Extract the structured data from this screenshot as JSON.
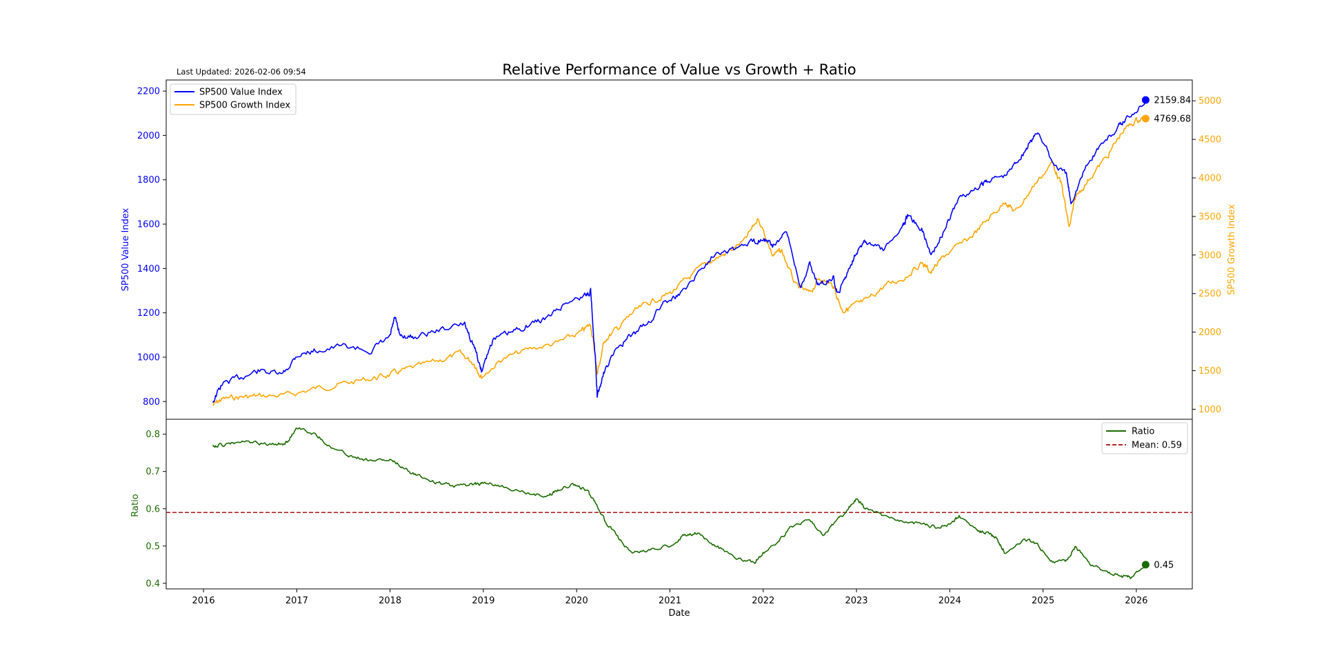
{
  "meta": {
    "last_updated": "Last Updated: 2026-02-06 09:54"
  },
  "colors": {
    "value": "#0000ff",
    "growth": "#ffa500",
    "ratio": "#1a6b00",
    "mean": "#b22222",
    "axis": "#000000"
  },
  "chart_data": [
    {
      "type": "line",
      "title": "Relative Performance of Value vs Growth + Ratio",
      "xlim": [
        2015.6,
        2026.6
      ],
      "x_ticks": [
        2016,
        2017,
        2018,
        2019,
        2020,
        2021,
        2022,
        2023,
        2024,
        2025,
        2026
      ],
      "x_tick_labels": [
        "2016",
        "2017",
        "2018",
        "2019",
        "2020",
        "2021",
        "2022",
        "2023",
        "2024",
        "2025",
        "2026"
      ],
      "ylabel_left": "SP500 Value Index",
      "ylabel_right": "SP500 Growth Index",
      "ylim_left": [
        720,
        2250
      ],
      "ylim_right": [
        870,
        5270
      ],
      "y_ticks_left": [
        "800",
        "1000",
        "1200",
        "1400",
        "1600",
        "1800",
        "2000",
        "2200"
      ],
      "y_ticks_right": [
        "1000",
        "1500",
        "2000",
        "2500",
        "3000",
        "3500",
        "4000",
        "4500",
        "5000"
      ],
      "legend": {
        "position": "top-left",
        "entries": [
          "SP500 Value Index",
          "SP500 Growth Index"
        ]
      },
      "series": [
        {
          "name": "SP500 Value Index",
          "axis": "left",
          "x": [
            2016.1,
            2016.2,
            2016.4,
            2016.6,
            2016.85,
            2017.0,
            2017.2,
            2017.5,
            2017.8,
            2018.0,
            2018.05,
            2018.1,
            2018.25,
            2018.5,
            2018.8,
            2018.9,
            2018.98,
            2019.1,
            2019.3,
            2019.5,
            2019.7,
            2019.9,
            2020.1,
            2020.15,
            2020.2,
            2020.22,
            2020.3,
            2020.45,
            2020.6,
            2020.8,
            2020.95,
            2021.1,
            2021.3,
            2021.5,
            2021.7,
            2021.9,
            2022.0,
            2022.1,
            2022.25,
            2022.4,
            2022.5,
            2022.6,
            2022.75,
            2022.8,
            2022.9,
            2023.0,
            2023.1,
            2023.3,
            2023.5,
            2023.55,
            2023.7,
            2023.8,
            2023.95,
            2024.1,
            2024.3,
            2024.4,
            2024.6,
            2024.75,
            2024.85,
            2024.95,
            2025.1,
            2025.25,
            2025.3,
            2025.45,
            2025.6,
            2025.8,
            2025.9,
            2026.1
          ],
          "values": [
            800,
            880,
            910,
            940,
            920,
            1010,
            1030,
            1050,
            1030,
            1090,
            1180,
            1100,
            1090,
            1120,
            1150,
            1050,
            940,
            1080,
            1110,
            1150,
            1180,
            1250,
            1280,
            1300,
            1000,
            820,
            940,
            1050,
            1100,
            1170,
            1260,
            1280,
            1380,
            1480,
            1490,
            1520,
            1540,
            1500,
            1560,
            1320,
            1420,
            1320,
            1360,
            1280,
            1380,
            1480,
            1520,
            1480,
            1600,
            1640,
            1580,
            1460,
            1580,
            1720,
            1760,
            1800,
            1820,
            1900,
            1960,
            2020,
            1880,
            1820,
            1700,
            1850,
            1950,
            2030,
            2080,
            2160
          ]
        },
        {
          "name": "SP500 Growth Index",
          "axis": "right",
          "x": [
            2016.1,
            2016.2,
            2016.4,
            2016.6,
            2016.9,
            2017.2,
            2017.5,
            2017.8,
            2018.0,
            2018.2,
            2018.5,
            2018.75,
            2018.9,
            2018.98,
            2019.2,
            2019.5,
            2019.8,
            2020.05,
            2020.15,
            2020.2,
            2020.22,
            2020.3,
            2020.45,
            2020.6,
            2020.8,
            2021.0,
            2021.2,
            2021.4,
            2021.6,
            2021.8,
            2021.95,
            2022.1,
            2022.2,
            2022.35,
            2022.5,
            2022.6,
            2022.75,
            2022.85,
            2022.95,
            2023.1,
            2023.3,
            2023.5,
            2023.7,
            2023.8,
            2023.95,
            2024.2,
            2024.4,
            2024.6,
            2024.7,
            2024.9,
            2025.1,
            2025.2,
            2025.28,
            2025.35,
            2025.5,
            2025.7,
            2025.85,
            2026.0,
            2026.1
          ],
          "values": [
            1050,
            1130,
            1160,
            1170,
            1180,
            1270,
            1330,
            1400,
            1450,
            1520,
            1620,
            1720,
            1600,
            1420,
            1650,
            1780,
            1860,
            2000,
            2100,
            1700,
            1450,
            1900,
            2060,
            2250,
            2400,
            2500,
            2700,
            2900,
            3020,
            3180,
            3480,
            3000,
            3050,
            2600,
            2500,
            2700,
            2600,
            2280,
            2330,
            2400,
            2600,
            2700,
            2900,
            2780,
            3000,
            3200,
            3450,
            3700,
            3550,
            3900,
            4200,
            3900,
            3350,
            3750,
            4000,
            4300,
            4600,
            4750,
            4770
          ]
        }
      ],
      "annotations": [
        {
          "label": "2159.84",
          "x": 2026.1,
          "value": 2159.84,
          "axis": "left"
        },
        {
          "label": "4769.68",
          "x": 2026.1,
          "value": 4769.68,
          "axis": "right"
        }
      ]
    },
    {
      "type": "line",
      "xlabel": "Date",
      "ylabel": "Ratio",
      "xlim": [
        2015.6,
        2026.6
      ],
      "ylim": [
        0.385,
        0.84
      ],
      "y_ticks": [
        "0.4",
        "0.5",
        "0.6",
        "0.7",
        "0.8"
      ],
      "legend": {
        "position": "top-right",
        "entries": [
          "Ratio",
          "Mean: 0.59"
        ]
      },
      "mean": 0.59,
      "series": [
        {
          "name": "Ratio",
          "x": [
            2016.1,
            2016.2,
            2016.4,
            2016.6,
            2016.8,
            2016.9,
            2017.0,
            2017.2,
            2017.4,
            2017.6,
            2017.8,
            2018.0,
            2018.15,
            2018.3,
            2018.5,
            2018.7,
            2018.9,
            2019.0,
            2019.2,
            2019.5,
            2019.7,
            2019.8,
            2019.95,
            2020.1,
            2020.2,
            2020.3,
            2020.45,
            2020.6,
            2020.8,
            2021.0,
            2021.15,
            2021.3,
            2021.5,
            2021.7,
            2021.9,
            2022.0,
            2022.15,
            2022.3,
            2022.5,
            2022.65,
            2022.8,
            2022.9,
            2023.0,
            2023.1,
            2023.3,
            2023.5,
            2023.7,
            2023.85,
            2024.0,
            2024.1,
            2024.3,
            2024.4,
            2024.5,
            2024.6,
            2024.8,
            2024.95,
            2025.1,
            2025.25,
            2025.35,
            2025.5,
            2025.7,
            2025.85,
            2025.95,
            2026.1
          ],
          "values": [
            0.77,
            0.77,
            0.78,
            0.775,
            0.77,
            0.78,
            0.82,
            0.8,
            0.76,
            0.74,
            0.73,
            0.73,
            0.71,
            0.69,
            0.67,
            0.66,
            0.665,
            0.67,
            0.66,
            0.64,
            0.635,
            0.65,
            0.665,
            0.65,
            0.62,
            0.57,
            0.52,
            0.48,
            0.49,
            0.5,
            0.53,
            0.535,
            0.5,
            0.47,
            0.455,
            0.48,
            0.51,
            0.55,
            0.57,
            0.53,
            0.57,
            0.6,
            0.625,
            0.6,
            0.58,
            0.565,
            0.56,
            0.55,
            0.56,
            0.58,
            0.54,
            0.535,
            0.52,
            0.48,
            0.52,
            0.5,
            0.46,
            0.46,
            0.5,
            0.45,
            0.43,
            0.42,
            0.415,
            0.45
          ]
        }
      ],
      "annotations": [
        {
          "label": "0.45",
          "x": 2026.1,
          "value": 0.45
        }
      ]
    }
  ]
}
